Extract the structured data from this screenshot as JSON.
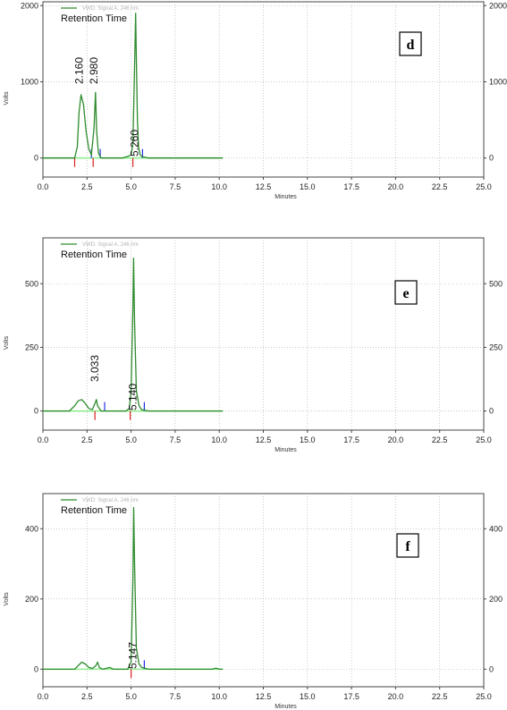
{
  "chart_data": [
    {
      "type": "line",
      "panel_label": "d",
      "legend": "VWD: Signal A, 246 nm",
      "annotation_title": "Retention Time",
      "xlabel": "Minutes",
      "ylabel": "Volts",
      "xlim": [
        0,
        25
      ],
      "ylim": [
        -250,
        2050
      ],
      "x_ticks": [
        "0.0",
        "2.5",
        "5.0",
        "7.5",
        "10.0",
        "12.5",
        "15.0",
        "17.5",
        "20.0",
        "22.5",
        "25.0"
      ],
      "y_ticks": [
        0,
        1000,
        2000
      ],
      "grid": true,
      "colors": {
        "trace": "#2e8b2e",
        "baseline": "#90ee90",
        "start_marker": "#e02020",
        "end_marker": "#2030e0"
      },
      "series": [
        {
          "name": "VWD: Signal A, 246 nm",
          "x": [
            0,
            1.8,
            1.95,
            2.05,
            2.16,
            2.3,
            2.45,
            2.6,
            2.75,
            2.9,
            2.98,
            3.05,
            3.15,
            3.3,
            4.5,
            4.8,
            5.0,
            5.1,
            5.2,
            5.26,
            5.3,
            5.36,
            5.42,
            5.5,
            5.6,
            6.0,
            10.2
          ],
          "y": [
            0,
            0,
            150,
            600,
            830,
            700,
            350,
            120,
            40,
            400,
            860,
            350,
            60,
            0,
            0,
            20,
            40,
            180,
            1200,
            1900,
            1300,
            500,
            150,
            50,
            20,
            0,
            0
          ]
        }
      ],
      "peaks": [
        {
          "label": "2.160",
          "rt": 2.16
        },
        {
          "label": "2.980",
          "rt": 2.98
        },
        {
          "label": "5.260",
          "rt": 5.26
        }
      ],
      "markers": [
        {
          "x": 1.8,
          "color": "start_marker",
          "dir": "down"
        },
        {
          "x": 2.75,
          "color": "end_marker",
          "dir": "up"
        },
        {
          "x": 2.85,
          "color": "start_marker",
          "dir": "down"
        },
        {
          "x": 3.25,
          "color": "end_marker",
          "dir": "up"
        },
        {
          "x": 5.1,
          "color": "start_marker",
          "dir": "down"
        },
        {
          "x": 5.65,
          "color": "end_marker",
          "dir": "up"
        }
      ]
    },
    {
      "type": "line",
      "panel_label": "e",
      "legend": "VWD: Signal A, 246 nm",
      "annotation_title": "Retention Time",
      "xlabel": "Minutes",
      "ylabel": "Volts",
      "xlim": [
        0,
        25
      ],
      "ylim": [
        -75,
        680
      ],
      "x_ticks": [
        "0.0",
        "2.5",
        "5.0",
        "7.5",
        "10.0",
        "12.5",
        "15.0",
        "17.5",
        "20.0",
        "22.5",
        "25.0"
      ],
      "y_ticks": [
        0,
        250,
        500
      ],
      "grid": true,
      "colors": {
        "trace": "#2e8b2e",
        "baseline": "#90ee90",
        "start_marker": "#e02020",
        "end_marker": "#2030e0"
      },
      "series": [
        {
          "name": "VWD: Signal A, 246 nm",
          "x": [
            0,
            1.5,
            1.8,
            2.0,
            2.2,
            2.4,
            2.6,
            2.8,
            2.95,
            3.033,
            3.1,
            3.3,
            4.7,
            4.9,
            5.0,
            5.1,
            5.14,
            5.2,
            5.3,
            5.45,
            5.6,
            6.0,
            10.2
          ],
          "y": [
            0,
            0,
            20,
            40,
            45,
            30,
            10,
            5,
            30,
            45,
            20,
            0,
            0,
            10,
            80,
            400,
            600,
            350,
            80,
            20,
            5,
            0,
            0
          ]
        }
      ],
      "peaks": [
        {
          "label": "3.033",
          "rt": 3.033
        },
        {
          "label": "5.140",
          "rt": 5.14
        }
      ],
      "markers": [
        {
          "x": 2.95,
          "color": "start_marker",
          "dir": "down"
        },
        {
          "x": 3.5,
          "color": "end_marker",
          "dir": "up"
        },
        {
          "x": 4.95,
          "color": "start_marker",
          "dir": "down"
        },
        {
          "x": 5.75,
          "color": "end_marker",
          "dir": "up"
        }
      ]
    },
    {
      "type": "line",
      "panel_label": "f",
      "legend": "VWD: Signal A, 246 nm",
      "annotation_title": "Retention Time",
      "xlabel": "Minutes",
      "ylabel": "Volts",
      "xlim": [
        0,
        25
      ],
      "ylim": [
        -50,
        500
      ],
      "x_ticks": [
        "0.0",
        "2.5",
        "5.0",
        "7.5",
        "10.0",
        "12.5",
        "15.0",
        "17.5",
        "20.0",
        "22.5",
        "25.0"
      ],
      "y_ticks": [
        0,
        200,
        400
      ],
      "grid": true,
      "colors": {
        "trace": "#2e8b2e",
        "baseline": "#90ee90",
        "start_marker": "#e02020",
        "end_marker": "#2030e0"
      },
      "series": [
        {
          "name": "VWD: Signal A, 246 nm",
          "x": [
            0,
            1.8,
            2.0,
            2.2,
            2.4,
            2.6,
            2.8,
            3.0,
            3.1,
            3.2,
            3.4,
            3.8,
            4.0,
            4.8,
            5.0,
            5.1,
            5.147,
            5.2,
            5.3,
            5.45,
            5.6,
            6.0,
            9.6,
            9.8,
            10.0,
            10.2
          ],
          "y": [
            0,
            0,
            10,
            20,
            15,
            5,
            2,
            10,
            20,
            5,
            0,
            5,
            0,
            0,
            20,
            250,
            460,
            300,
            60,
            15,
            5,
            0,
            0,
            3,
            0,
            0
          ]
        }
      ],
      "peaks": [
        {
          "label": "5.147",
          "rt": 5.147
        }
      ],
      "markers": [
        {
          "x": 5.0,
          "color": "start_marker",
          "dir": "down"
        },
        {
          "x": 5.75,
          "color": "end_marker",
          "dir": "up"
        }
      ]
    }
  ]
}
